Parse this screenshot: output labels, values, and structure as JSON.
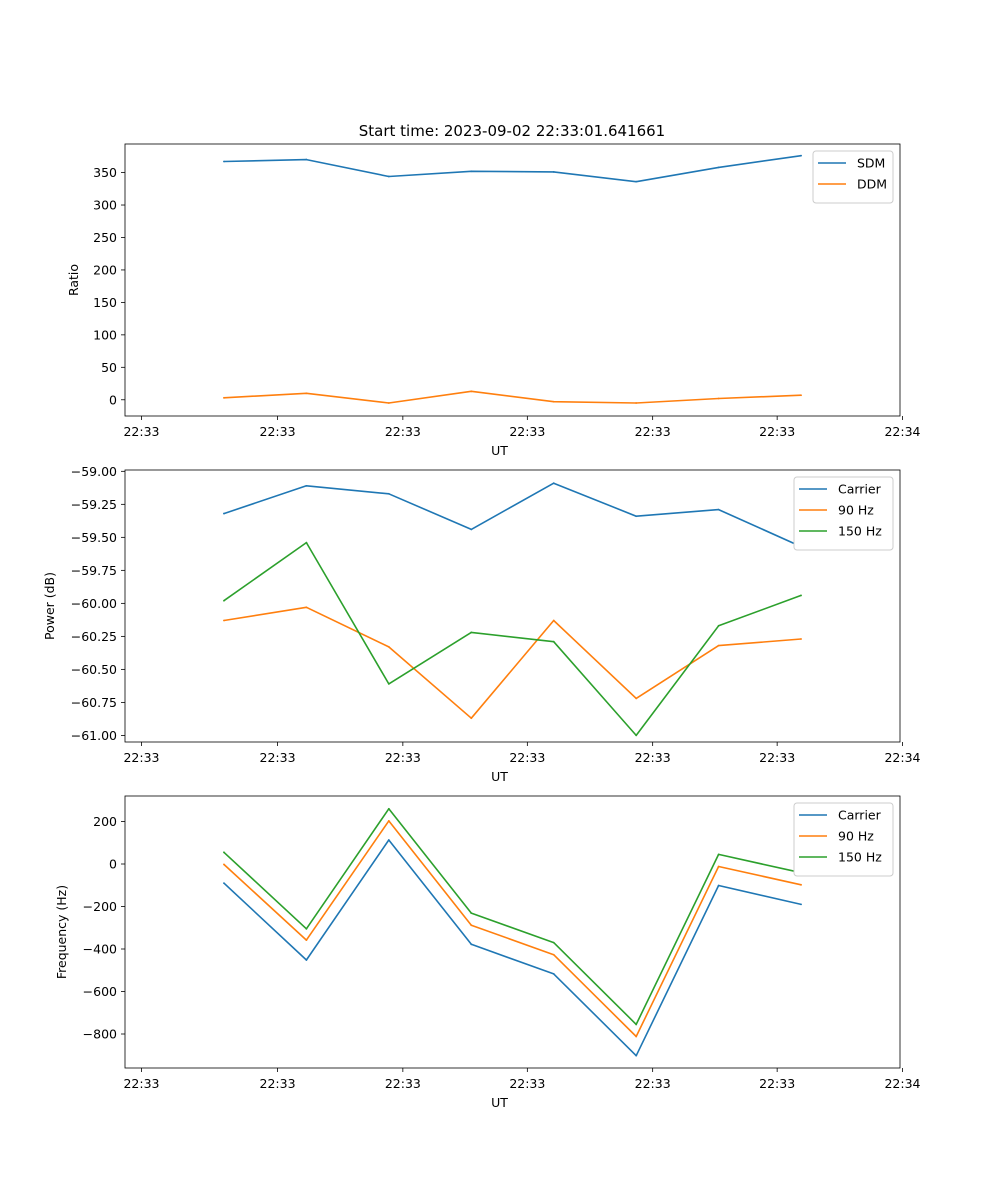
{
  "title": "Start time: 2023-09-02 22:33:01.641661",
  "colors": {
    "blue": "#1f77b4",
    "orange": "#ff7f0e",
    "green": "#2ca02c"
  },
  "chart_data": [
    {
      "type": "line",
      "title": "Start time: 2023-09-02 22:33:01.641661",
      "xlabel": "UT",
      "ylabel": "Ratio",
      "x": [
        1,
        2,
        3,
        4,
        5,
        6,
        7,
        8
      ],
      "xlim": [
        -0.2,
        9.2
      ],
      "x_ticks": [
        0,
        1.65,
        3.17,
        4.68,
        6.2,
        7.71,
        9.23
      ],
      "x_tick_labels": [
        "22:33",
        "22:33",
        "22:33",
        "22:33",
        "22:33",
        "22:33",
        "22:34"
      ],
      "ylim": [
        -25,
        394
      ],
      "y_ticks": [
        0,
        50,
        100,
        150,
        200,
        250,
        300,
        350
      ],
      "y_tick_labels": [
        "0",
        "50",
        "100",
        "150",
        "200",
        "250",
        "300",
        "350"
      ],
      "legend_position": "top-right",
      "series": [
        {
          "name": "SDM",
          "color": "#1f77b4",
          "values": [
            367,
            370,
            344,
            352,
            351,
            336,
            358,
            376
          ]
        },
        {
          "name": "DDM",
          "color": "#ff7f0e",
          "values": [
            3,
            10,
            -5,
            13,
            -3,
            -5,
            2,
            7
          ]
        }
      ]
    },
    {
      "type": "line",
      "title": "",
      "xlabel": "UT",
      "ylabel": "Power (dB)",
      "x": [
        1,
        2,
        3,
        4,
        5,
        6,
        7,
        8
      ],
      "xlim": [
        -0.2,
        9.2
      ],
      "x_ticks": [
        0,
        1.65,
        3.17,
        4.68,
        6.2,
        7.71,
        9.23
      ],
      "x_tick_labels": [
        "22:33",
        "22:33",
        "22:33",
        "22:33",
        "22:33",
        "22:33",
        "22:34"
      ],
      "ylim": [
        -61.05,
        -58.99
      ],
      "y_ticks": [
        -61.0,
        -60.75,
        -60.5,
        -60.25,
        -60.0,
        -59.75,
        -59.5,
        -59.25,
        -59.0
      ],
      "y_tick_labels": [
        "−61.00",
        "−60.75",
        "−60.50",
        "−60.25",
        "−60.00",
        "−59.75",
        "−59.50",
        "−59.25",
        "−59.00"
      ],
      "legend_position": "top-right",
      "series": [
        {
          "name": "Carrier",
          "color": "#1f77b4",
          "values": [
            -59.32,
            -59.11,
            -59.17,
            -59.44,
            -59.09,
            -59.34,
            -59.29,
            -59.57
          ]
        },
        {
          "name": "90 Hz",
          "color": "#ff7f0e",
          "values": [
            -60.13,
            -60.03,
            -60.33,
            -60.87,
            -60.13,
            -60.72,
            -60.32,
            -60.27
          ]
        },
        {
          "name": "150 Hz",
          "color": "#2ca02c",
          "values": [
            -59.98,
            -59.54,
            -60.61,
            -60.22,
            -60.29,
            -61.0,
            -60.17,
            -59.94
          ]
        }
      ]
    },
    {
      "type": "line",
      "title": "",
      "xlabel": "UT",
      "ylabel": "Frequency (Hz)",
      "x": [
        1,
        2,
        3,
        4,
        5,
        6,
        7,
        8
      ],
      "xlim": [
        -0.2,
        9.2
      ],
      "x_ticks": [
        0,
        1.65,
        3.17,
        4.68,
        6.2,
        7.71,
        9.23
      ],
      "x_tick_labels": [
        "22:33",
        "22:33",
        "22:33",
        "22:33",
        "22:33",
        "22:33",
        "22:34"
      ],
      "ylim": [
        -960,
        320
      ],
      "y_ticks": [
        -800,
        -600,
        -400,
        -200,
        0,
        200
      ],
      "y_tick_labels": [
        "−800",
        "−600",
        "−400",
        "−200",
        "0",
        "200"
      ],
      "legend_position": "top-right",
      "series": [
        {
          "name": "Carrier",
          "color": "#1f77b4",
          "values": [
            -90,
            -452,
            113,
            -378,
            -517,
            -902,
            -101,
            -190
          ]
        },
        {
          "name": "90 Hz",
          "color": "#ff7f0e",
          "values": [
            -2,
            -358,
            203,
            -288,
            -427,
            -812,
            -12,
            -98
          ]
        },
        {
          "name": "150 Hz",
          "color": "#2ca02c",
          "values": [
            55,
            -305,
            260,
            -231,
            -370,
            -755,
            45,
            -41
          ]
        }
      ]
    }
  ]
}
